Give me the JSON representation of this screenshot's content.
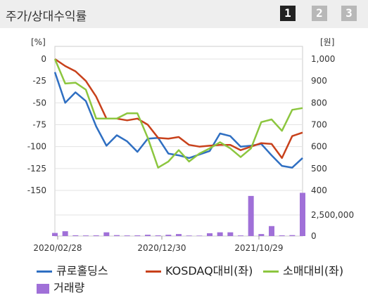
{
  "header": {
    "title": "주가/상대수익률",
    "tabs": [
      {
        "label": "1",
        "active": true
      },
      {
        "label": "2",
        "active": false
      },
      {
        "label": "3",
        "active": false
      }
    ]
  },
  "chart_data": {
    "type": "line",
    "left_axis": {
      "unit": "[%]",
      "ticks": [
        "0",
        "-25",
        "-50",
        "-75",
        "-100",
        "-125",
        "-150"
      ],
      "range": [
        -150,
        0
      ]
    },
    "right_axis": {
      "unit": "[원]",
      "ticks": [
        "1,000",
        "900",
        "800",
        "700",
        "600",
        "500",
        "400"
      ],
      "range": [
        400,
        1000
      ]
    },
    "volume_axis": {
      "ticks": [
        "2,500,000",
        "0"
      ],
      "range": [
        0,
        2700000
      ]
    },
    "x_labels": [
      "2020/02/28",
      "2020/12/30",
      "2021/10/29"
    ],
    "series": [
      {
        "name": "큐로홀딩스",
        "color": "#2f6fc2",
        "axis": "left",
        "values": [
          -15,
          -50,
          -38,
          -48,
          -77,
          -99,
          -87,
          -94,
          -106,
          -91,
          -90,
          -108,
          -110,
          -113,
          -109,
          -105,
          -85,
          -88,
          -100,
          -99,
          -97,
          -110,
          -122,
          -124,
          -113
        ]
      },
      {
        "name": "KOSDAQ대비(좌)",
        "color": "#c8411b",
        "axis": "left",
        "values": [
          0,
          -8,
          -14,
          -25,
          -43,
          -68,
          -68,
          -70,
          -68,
          -75,
          -90,
          -91,
          -89,
          -98,
          -100,
          -99,
          -98,
          -98,
          -104,
          -100,
          -96,
          -97,
          -113,
          -88,
          -84
        ]
      },
      {
        "name": "소매대비(좌)",
        "color": "#8cc63f",
        "axis": "left",
        "values": [
          0,
          -28,
          -27,
          -35,
          -68,
          -68,
          -68,
          -62,
          -62,
          -90,
          -124,
          -117,
          -104,
          -117,
          -108,
          -102,
          -95,
          -102,
          -112,
          -102,
          -72,
          -69,
          -82,
          -58,
          -56
        ]
      }
    ],
    "volume": {
      "name": "거래량",
      "color": "#a070d8",
      "values": [
        200000,
        310000,
        50000,
        40000,
        45000,
        240000,
        60000,
        40000,
        45000,
        85000,
        45000,
        85000,
        130000,
        35000,
        30000,
        180000,
        240000,
        240000,
        40000,
        2570000,
        130000,
        640000,
        45000,
        60000,
        2770000
      ]
    }
  },
  "legend": [
    {
      "label": "큐로홀딩스",
      "type": "line",
      "color": "#2f6fc2"
    },
    {
      "label": "KOSDAQ대비(좌)",
      "type": "line",
      "color": "#c8411b"
    },
    {
      "label": "소매대비(좌)",
      "type": "line",
      "color": "#8cc63f"
    },
    {
      "label": "거래량",
      "type": "box",
      "color": "#a070d8"
    }
  ]
}
